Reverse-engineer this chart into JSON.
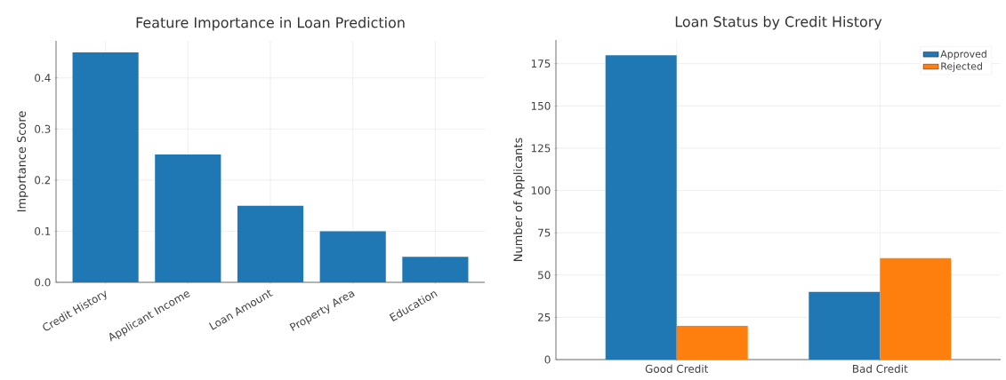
{
  "chart_data": [
    {
      "type": "bar",
      "title": "Feature Importance in Loan Prediction",
      "ylabel": "Importance Score",
      "categories": [
        "Credit History",
        "Applicant Income",
        "Loan Amount",
        "Property Area",
        "Education"
      ],
      "values": [
        0.45,
        0.25,
        0.15,
        0.1,
        0.05
      ],
      "color": "#1f77b4",
      "ylim": [
        0,
        0.4725
      ],
      "yticks": [
        {
          "value": 0,
          "label": "0.0"
        },
        0.1,
        0.2,
        0.3,
        0.4
      ],
      "grid": true
    },
    {
      "type": "bar",
      "title": "Loan Status by Credit History",
      "ylabel": "Number of Applicants",
      "categories": [
        "Good Credit",
        "Bad Credit"
      ],
      "series": [
        {
          "name": "Approved",
          "color": "#1f77b4",
          "values": [
            180,
            40
          ]
        },
        {
          "name": "Rejected",
          "color": "#ff7f0e",
          "values": [
            20,
            60
          ]
        }
      ],
      "ylim": [
        0,
        189
      ],
      "yticks": [
        0,
        25,
        50,
        75,
        100,
        125,
        150,
        175
      ],
      "grid": true,
      "legend": "top right"
    }
  ]
}
